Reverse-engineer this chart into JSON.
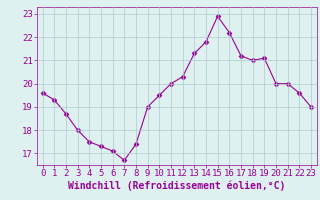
{
  "x": [
    0,
    1,
    2,
    3,
    4,
    5,
    6,
    7,
    8,
    9,
    10,
    11,
    12,
    13,
    14,
    15,
    16,
    17,
    18,
    19,
    20,
    21,
    22,
    23
  ],
  "y": [
    19.6,
    19.3,
    18.7,
    18.0,
    17.5,
    17.3,
    17.1,
    16.7,
    17.4,
    19.0,
    19.5,
    20.0,
    20.3,
    21.3,
    21.8,
    22.9,
    22.2,
    21.2,
    21.0,
    21.1,
    20.0,
    20.0,
    19.6,
    19.0
  ],
  "line_color": "#990099",
  "marker": "D",
  "marker_size": 2.5,
  "bg_color": "#dff0f0",
  "grid_color": "#aacccc",
  "xlabel": "Windchill (Refroidissement éolien,°C)",
  "xlabel_color": "#990099",
  "xlabel_fontsize": 7,
  "tick_color": "#990099",
  "tick_fontsize": 6.5,
  "ylim": [
    16.5,
    23.3
  ],
  "yticks": [
    17,
    18,
    19,
    20,
    21,
    22,
    23
  ],
  "xlim": [
    -0.5,
    23.5
  ],
  "xticks": [
    0,
    1,
    2,
    3,
    4,
    5,
    6,
    7,
    8,
    9,
    10,
    11,
    12,
    13,
    14,
    15,
    16,
    17,
    18,
    19,
    20,
    21,
    22,
    23
  ]
}
